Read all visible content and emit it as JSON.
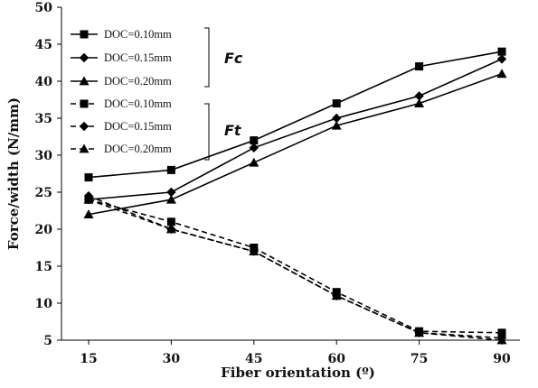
{
  "chart_data": {
    "type": "line",
    "xlabel": "Fiber orientation (º)",
    "ylabel": "Force/width (N/mm)",
    "x": [
      15,
      30,
      45,
      60,
      75,
      90
    ],
    "x_ticks": [
      "15",
      "30",
      "45",
      "60",
      "75",
      "90"
    ],
    "ylim": [
      5,
      50
    ],
    "y_ticks": [
      "5",
      "10",
      "15",
      "20",
      "25",
      "30",
      "35",
      "40",
      "45",
      "50"
    ],
    "grid": false,
    "legend_position": "top-left",
    "colors": {
      "line": "#000000"
    },
    "groups": [
      {
        "label": "Fc",
        "style": "solid"
      },
      {
        "label": "Ft",
        "style": "dashed"
      }
    ],
    "series": [
      {
        "name": "DOC=0.10mm",
        "group": "Fc",
        "marker": "square",
        "dashed": false,
        "values": [
          27,
          28,
          32,
          37,
          42,
          44
        ]
      },
      {
        "name": "DOC=0.15mm",
        "group": "Fc",
        "marker": "diamond",
        "dashed": false,
        "values": [
          24,
          25,
          31,
          35,
          38,
          43
        ]
      },
      {
        "name": "DOC=0.20mm",
        "group": "Fc",
        "marker": "triangle",
        "dashed": false,
        "values": [
          22,
          24,
          29,
          34,
          37,
          41
        ]
      },
      {
        "name": "DOC=0.10mm",
        "group": "Ft",
        "marker": "square",
        "dashed": true,
        "values": [
          24,
          21,
          17.5,
          11.5,
          6.2,
          6
        ]
      },
      {
        "name": "DOC=0.15mm",
        "group": "Ft",
        "marker": "diamond",
        "dashed": true,
        "values": [
          24.5,
          20,
          17,
          11,
          6,
          5.3
        ]
      },
      {
        "name": "DOC=0.20mm",
        "group": "Ft",
        "marker": "triangle",
        "dashed": true,
        "values": [
          24,
          20,
          17,
          11,
          6,
          5
        ]
      }
    ]
  }
}
